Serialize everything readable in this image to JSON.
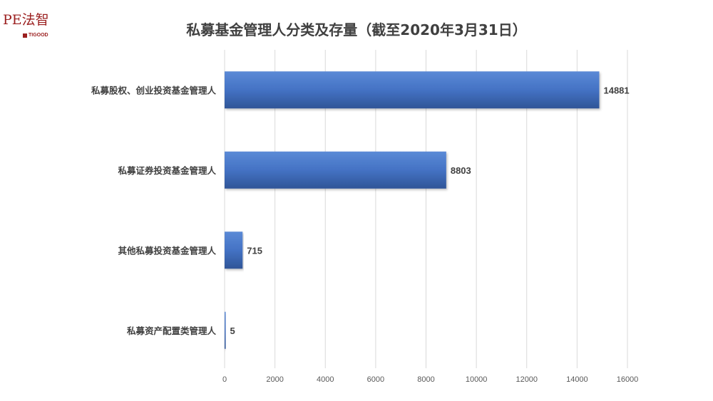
{
  "logo": {
    "main": "PE法智",
    "sub": "TIGOOD"
  },
  "chart_data": {
    "type": "bar",
    "orientation": "horizontal",
    "title": "私募基金管理人分类及存量（截至2020年3月31日）",
    "categories": [
      "私募股权、创业投资基金管理人",
      "私募证券投资基金管理人",
      "其他私募投资基金管理人",
      "私募资产配置类管理人"
    ],
    "values": [
      14881,
      8803,
      715,
      5
    ],
    "xlim": [
      0,
      16000
    ],
    "xticks": [
      0,
      2000,
      4000,
      6000,
      8000,
      10000,
      12000,
      14000,
      16000
    ],
    "grid": true,
    "legend": "none",
    "bar_color": "#4472c4",
    "data_labels": true
  }
}
